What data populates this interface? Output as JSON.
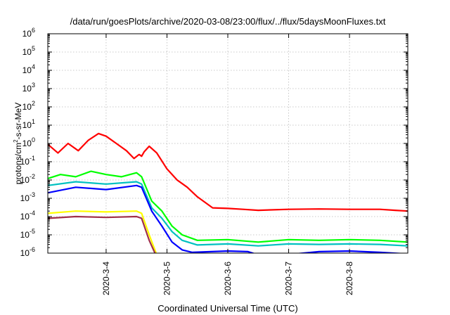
{
  "chart_data": {
    "type": "line",
    "title": "/data/run/goesPlots/archive/2020-03-08/23:00/flux/../flux/5daysMoonFluxes.txt",
    "xlabel": "Coordinated Universal Time (UTC)",
    "ylabel_parts": [
      "protons/cm",
      "2",
      "-s-sr-MeV"
    ],
    "yscale": "log",
    "ylim": [
      1e-06,
      1000000.0
    ],
    "xlim": [
      "2020-03-03 01:00",
      "2020-03-08 23:00"
    ],
    "grid": true,
    "legend": "none",
    "x_tick_labels": [
      "2020-3-4",
      "2020-3-5",
      "2020-3-6",
      "2020-3-7",
      "2020-3-8"
    ],
    "y_tick_labels": [
      {
        "base": "10",
        "exp": "-6"
      },
      {
        "base": "10",
        "exp": "-5"
      },
      {
        "base": "10",
        "exp": "-4"
      },
      {
        "base": "10",
        "exp": "-3"
      },
      {
        "base": "10",
        "exp": "-2"
      },
      {
        "base": "10",
        "exp": "-1"
      },
      {
        "base": "10",
        "exp": "0"
      },
      {
        "base": "10",
        "exp": "1"
      },
      {
        "base": "10",
        "exp": "2"
      },
      {
        "base": "10",
        "exp": "3"
      },
      {
        "base": "10",
        "exp": "4"
      },
      {
        "base": "10",
        "exp": "5"
      },
      {
        "base": "10",
        "exp": "6"
      }
    ],
    "series": [
      {
        "color": "#ff0000",
        "x": [
          "2020-03-03 01:00",
          "2020-03-03 05:00",
          "2020-03-03 09:00",
          "2020-03-03 13:00",
          "2020-03-03 17:00",
          "2020-03-03 21:00",
          "2020-03-04 00:00",
          "2020-03-04 04:00",
          "2020-03-04 08:00",
          "2020-03-04 11:00",
          "2020-03-04 13:00",
          "2020-03-04 14:00",
          "2020-03-04 15:00",
          "2020-03-04 17:00",
          "2020-03-04 20:00",
          "2020-03-05 00:00",
          "2020-03-05 04:00",
          "2020-03-05 08:00",
          "2020-03-05 12:00",
          "2020-03-05 18:00",
          "2020-03-06 00:00",
          "2020-03-06 06:00",
          "2020-03-06 12:00",
          "2020-03-07 00:00",
          "2020-03-07 12:00",
          "2020-03-08 00:00",
          "2020-03-08 12:00",
          "2020-03-08 18:00",
          "2020-03-08 23:00"
        ],
        "y": [
          0.9,
          0.3,
          1.0,
          0.4,
          1.5,
          3.5,
          2.5,
          1.0,
          0.4,
          0.15,
          0.25,
          0.2,
          0.35,
          0.7,
          0.3,
          0.04,
          0.01,
          0.004,
          0.0012,
          0.0003,
          0.00028,
          0.00025,
          0.00022,
          0.00025,
          0.00026,
          0.00025,
          0.00025,
          0.00022,
          0.0002
        ]
      },
      {
        "color": "#00ff00",
        "x": [
          "2020-03-03 01:00",
          "2020-03-03 06:00",
          "2020-03-03 12:00",
          "2020-03-03 18:00",
          "2020-03-04 00:00",
          "2020-03-04 06:00",
          "2020-03-04 12:00",
          "2020-03-04 14:00",
          "2020-03-04 18:00",
          "2020-03-04 22:00",
          "2020-03-05 02:00",
          "2020-03-05 06:00",
          "2020-03-05 12:00",
          "2020-03-06 00:00",
          "2020-03-06 12:00",
          "2020-03-07 00:00",
          "2020-03-07 12:00",
          "2020-03-08 00:00",
          "2020-03-08 12:00",
          "2020-03-08 23:00"
        ],
        "y": [
          0.012,
          0.02,
          0.015,
          0.03,
          0.02,
          0.015,
          0.025,
          0.015,
          0.0007,
          0.0002,
          3e-05,
          1e-05,
          5e-06,
          5.5e-06,
          4e-06,
          5.5e-06,
          5e-06,
          5.5e-06,
          5e-06,
          4e-06
        ]
      },
      {
        "color": "#00c0c0",
        "x": [
          "2020-03-03 01:00",
          "2020-03-03 12:00",
          "2020-03-04 00:00",
          "2020-03-04 12:00",
          "2020-03-04 14:00",
          "2020-03-04 18:00",
          "2020-03-04 22:00",
          "2020-03-05 02:00",
          "2020-03-05 06:00",
          "2020-03-05 12:00",
          "2020-03-06 00:00",
          "2020-03-06 12:00",
          "2020-03-07 00:00",
          "2020-03-07 12:00",
          "2020-03-08 00:00",
          "2020-03-08 12:00",
          "2020-03-08 23:00"
        ],
        "y": [
          0.005,
          0.008,
          0.006,
          0.008,
          0.006,
          0.0003,
          8e-05,
          1.5e-05,
          5e-06,
          2.8e-06,
          3.2e-06,
          2.5e-06,
          3.2e-06,
          3e-06,
          3.2e-06,
          3e-06,
          2.5e-06
        ]
      },
      {
        "color": "#0000ff",
        "x": [
          "2020-03-03 01:00",
          "2020-03-03 12:00",
          "2020-03-04 00:00",
          "2020-03-04 12:00",
          "2020-03-04 14:00",
          "2020-03-04 18:00",
          "2020-03-04 22:00",
          "2020-03-05 02:00",
          "2020-03-05 06:00",
          "2020-03-05 10:00",
          "2020-03-06 00:00",
          "2020-03-06 08:00",
          "2020-03-06 12:00",
          "2020-03-06 18:00",
          "2020-03-07 12:00",
          "2020-03-08 00:00",
          "2020-03-08 12:00",
          "2020-03-08 23:00"
        ],
        "y": [
          0.002,
          0.004,
          0.003,
          0.005,
          0.004,
          0.0002,
          3e-05,
          4e-06,
          1.5e-06,
          1.1e-06,
          1.3e-06,
          1.2e-06,
          8e-07,
          7e-07,
          1.2e-06,
          1.3e-06,
          1.1e-06,
          9e-07
        ]
      },
      {
        "color": "#ffff00",
        "x": [
          "2020-03-03 01:00",
          "2020-03-03 12:00",
          "2020-03-04 00:00",
          "2020-03-04 12:00",
          "2020-03-04 14:00",
          "2020-03-04 17:00",
          "2020-03-04 20:00"
        ],
        "y": [
          0.00015,
          0.0002,
          0.00018,
          0.0002,
          0.00015,
          1e-05,
          8e-07
        ]
      },
      {
        "color": "#a0304a",
        "x": [
          "2020-03-03 01:00",
          "2020-03-03 12:00",
          "2020-03-04 00:00",
          "2020-03-04 12:00",
          "2020-03-04 14:00",
          "2020-03-04 17:00",
          "2020-03-04 20:00"
        ],
        "y": [
          8e-05,
          0.0001,
          9e-05,
          0.0001,
          8e-05,
          5e-06,
          6e-07
        ]
      }
    ]
  }
}
